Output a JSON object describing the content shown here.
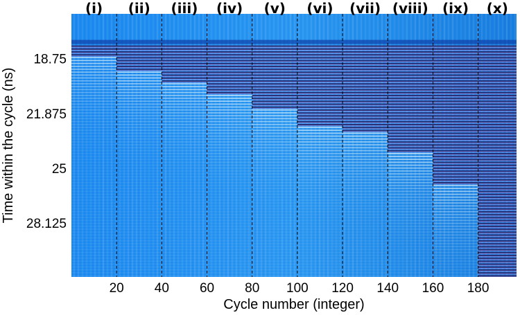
{
  "chart_data": {
    "type": "heatmap",
    "title": "",
    "xlabel": "Cycle number (integer)",
    "ylabel": "Time within the cycle (ns)",
    "xlim": [
      0,
      197
    ],
    "ylim": [
      16.2,
      31.2
    ],
    "y_inverted": true,
    "x_ticks": [
      20,
      40,
      60,
      80,
      100,
      120,
      140,
      160,
      180
    ],
    "x_tick_labels": [
      "20",
      "40",
      "60",
      "80",
      "100",
      "120",
      "140",
      "160",
      "180"
    ],
    "y_ticks": [
      18.75,
      21.875,
      25,
      28.125
    ],
    "y_tick_labels": [
      "18.75",
      "21.875",
      "25",
      "28.125"
    ],
    "region_boundaries": [
      20,
      40,
      60,
      80,
      100,
      120,
      140,
      160,
      180
    ],
    "regions": [
      {
        "label": "(i)",
        "x_start": 0,
        "x_end": 20,
        "front_time_ns": 18.5
      },
      {
        "label": "(ii)",
        "x_start": 20,
        "x_end": 40,
        "front_time_ns": 19.4
      },
      {
        "label": "(iii)",
        "x_start": 40,
        "x_end": 60,
        "front_time_ns": 20.0
      },
      {
        "label": "(iv)",
        "x_start": 60,
        "x_end": 80,
        "front_time_ns": 20.8
      },
      {
        "label": "(v)",
        "x_start": 80,
        "x_end": 100,
        "front_time_ns": 21.5
      },
      {
        "label": "(vi)",
        "x_start": 100,
        "x_end": 120,
        "front_time_ns": 22.5
      },
      {
        "label": "(vii)",
        "x_start": 120,
        "x_end": 140,
        "front_time_ns": 22.9
      },
      {
        "label": "(viii)",
        "x_start": 140,
        "x_end": 160,
        "front_time_ns": 24.1
      },
      {
        "label": "(ix)",
        "x_start": 160,
        "x_end": 180,
        "front_time_ns": 25.8
      },
      {
        "label": "(x)",
        "x_start": 180,
        "x_end": 197,
        "front_time_ns": 31.2
      }
    ],
    "signal_start_ns": 18.0,
    "colors": {
      "background": "#1f8ff0",
      "stripe_dark": "#2a2a6e",
      "stripe_light": "#d6eefa",
      "boundary_line": "#000000"
    },
    "grid": false,
    "legend": "none"
  }
}
